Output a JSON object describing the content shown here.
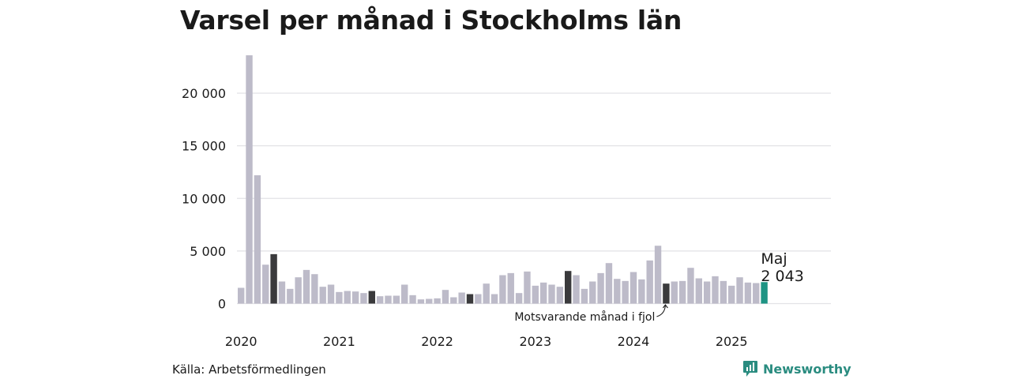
{
  "title": "Varsel per månad i Stockholms län",
  "source": "Källa: Arbetsförmedlingen",
  "brand": {
    "name": "Newsworthy",
    "icon": "newsworthy-logo-icon"
  },
  "colors": {
    "default": "#bdbbc9",
    "highlight": "#3a3a3c",
    "current": "#1e9484",
    "grid": "#e2e2e6",
    "brand": "#2a8c80"
  },
  "annotations": {
    "latest_month": "Maj",
    "latest_value": "2 043",
    "previous_year": "Motsvarande månad i fjol"
  },
  "chart_data": {
    "type": "bar",
    "title": "Varsel per månad i Stockholms län",
    "xlabel": "",
    "ylabel": "",
    "ylim": [
      0,
      24000
    ],
    "yticks": [
      0,
      5000,
      10000,
      15000,
      20000
    ],
    "ytick_labels": [
      "0",
      "5 000",
      "10 000",
      "15 000",
      "20 000"
    ],
    "xtick_labels": [
      "2020",
      "2021",
      "2022",
      "2023",
      "2024",
      "2025"
    ],
    "grid": true,
    "start": "2020-01",
    "end": "2025-05",
    "categories": [
      "2020-01",
      "2020-02",
      "2020-03",
      "2020-04",
      "2020-05",
      "2020-06",
      "2020-07",
      "2020-08",
      "2020-09",
      "2020-10",
      "2020-11",
      "2020-12",
      "2021-01",
      "2021-02",
      "2021-03",
      "2021-04",
      "2021-05",
      "2021-06",
      "2021-07",
      "2021-08",
      "2021-09",
      "2021-10",
      "2021-11",
      "2021-12",
      "2022-01",
      "2022-02",
      "2022-03",
      "2022-04",
      "2022-05",
      "2022-06",
      "2022-07",
      "2022-08",
      "2022-09",
      "2022-10",
      "2022-11",
      "2022-12",
      "2023-01",
      "2023-02",
      "2023-03",
      "2023-04",
      "2023-05",
      "2023-06",
      "2023-07",
      "2023-08",
      "2023-09",
      "2023-10",
      "2023-11",
      "2023-12",
      "2024-01",
      "2024-02",
      "2024-03",
      "2024-04",
      "2024-05",
      "2024-06",
      "2024-07",
      "2024-08",
      "2024-09",
      "2024-10",
      "2024-11",
      "2024-12",
      "2025-01",
      "2025-02",
      "2025-03",
      "2025-04",
      "2025-05"
    ],
    "values": [
      1500,
      23600,
      12200,
      3700,
      4700,
      2100,
      1400,
      2500,
      3200,
      2800,
      1600,
      1800,
      1100,
      1200,
      1150,
      1000,
      1200,
      700,
      750,
      750,
      1800,
      800,
      400,
      450,
      500,
      1300,
      600,
      1050,
      900,
      900,
      1900,
      900,
      2700,
      2900,
      1000,
      3050,
      1700,
      2000,
      1800,
      1600,
      3100,
      2700,
      1400,
      2100,
      2900,
      3850,
      2350,
      2150,
      3000,
      2300,
      4100,
      5500,
      1900,
      2100,
      2150,
      3400,
      2400,
      2100,
      2600,
      2150,
      1700,
      2500,
      2000,
      1950,
      2043
    ],
    "highlighted": [
      "2020-05",
      "2021-05",
      "2022-05",
      "2023-05",
      "2024-05"
    ],
    "current": "2025-05"
  }
}
